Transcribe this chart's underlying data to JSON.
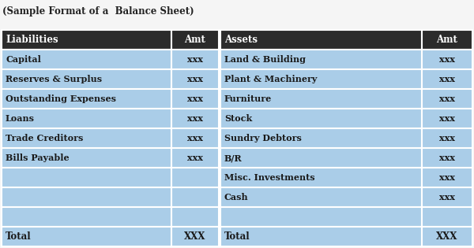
{
  "title": "(Sample Format of a  Balance Sheet)",
  "title_fontsize": 8.5,
  "title_color": "#222222",
  "header_bg": "#2b2b2b",
  "header_text_color": "#ffffff",
  "row_bg": "#aacde8",
  "white_bg": "#f5f5f5",
  "border_color": "#ffffff",
  "header_font_size": 8.5,
  "cell_font_size": 8.0,
  "total_font_size": 8.5,
  "headers": [
    "Liabilities",
    "Amt",
    "Assets",
    "Amt"
  ],
  "liabilities": [
    "Capital",
    "Reserves & Surplus",
    "Outstanding Expenses",
    "Loans",
    "Trade Creditors",
    "Bills Payable",
    "",
    ""
  ],
  "liab_amt": [
    "xxx",
    "xxx",
    "xxx",
    "xxx",
    "xxx",
    "xxx",
    "",
    ""
  ],
  "assets": [
    "Land & Building",
    "Plant & Machinery",
    "Furniture",
    "Stock",
    "Sundry Debtors",
    "B/R",
    "Misc. Investments",
    "Cash"
  ],
  "assets_amt": [
    "xxx",
    "xxx",
    "xxx",
    "xxx",
    "xxx",
    "xxx",
    "xxx",
    "xxx"
  ],
  "total_liab": "Total",
  "total_liab_amt": "XXX",
  "total_assets": "Total",
  "total_assets_amt": "XXX",
  "fig_width": 6.0,
  "fig_height": 3.15,
  "dpi": 100
}
